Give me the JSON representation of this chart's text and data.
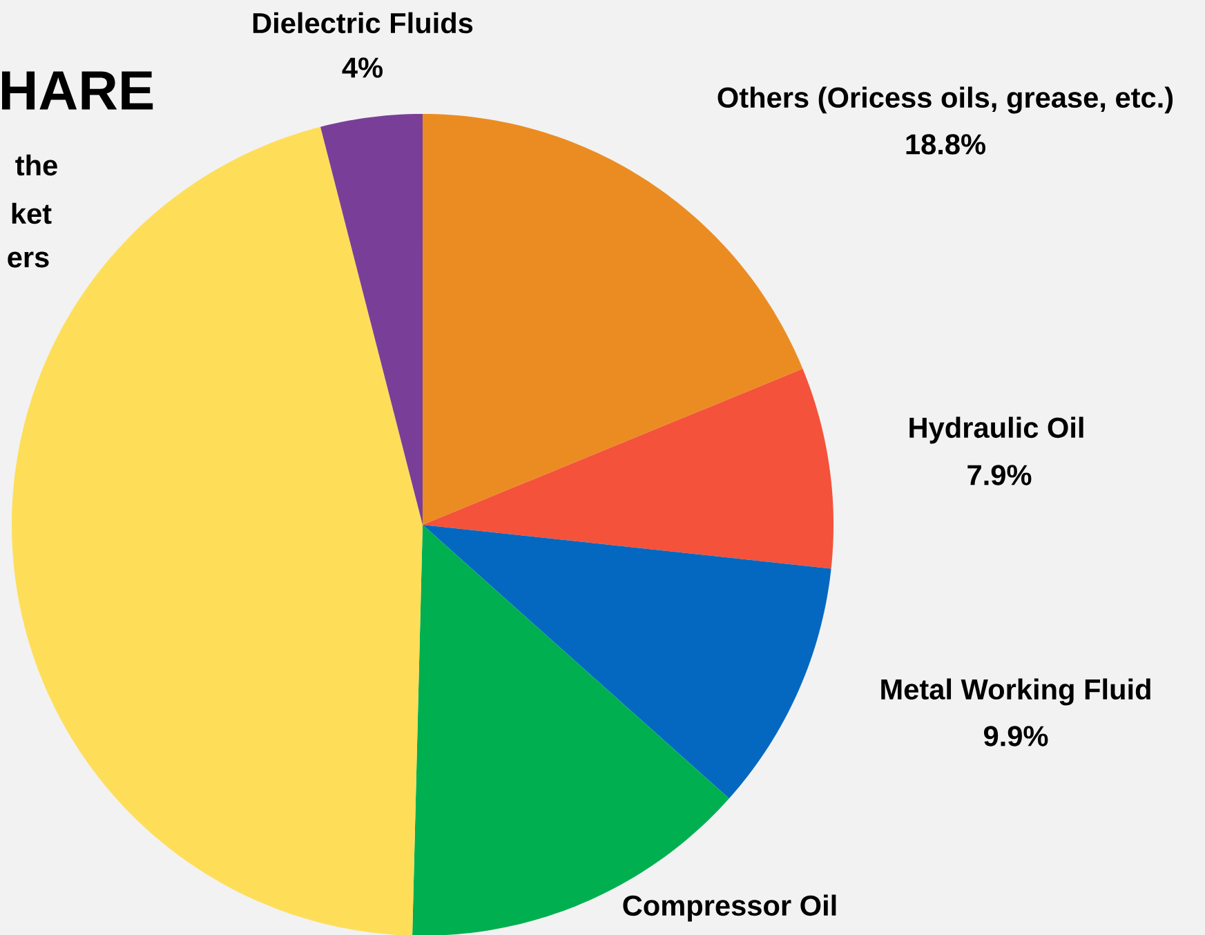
{
  "chart_data": {
    "type": "pie",
    "categories": [
      "Others (Oricess oils, grease, etc.)",
      "Hydraulic Oil",
      "Metal Working Fluid",
      "Compressor Oil",
      null,
      "Dielectric Fluids"
    ],
    "values": [
      18.8,
      7.9,
      9.9,
      13.8,
      45.6,
      4
    ],
    "value_labels": [
      "18.8%",
      "7.9%",
      "9.9%",
      null,
      null,
      "4%"
    ],
    "colors": [
      "#eb8c23",
      "#f4523a",
      "#0468c1",
      "#00af50",
      "#fede59",
      "#793f98"
    ],
    "annotations": [
      "HARE",
      "the",
      "ket",
      "ers"
    ]
  }
}
